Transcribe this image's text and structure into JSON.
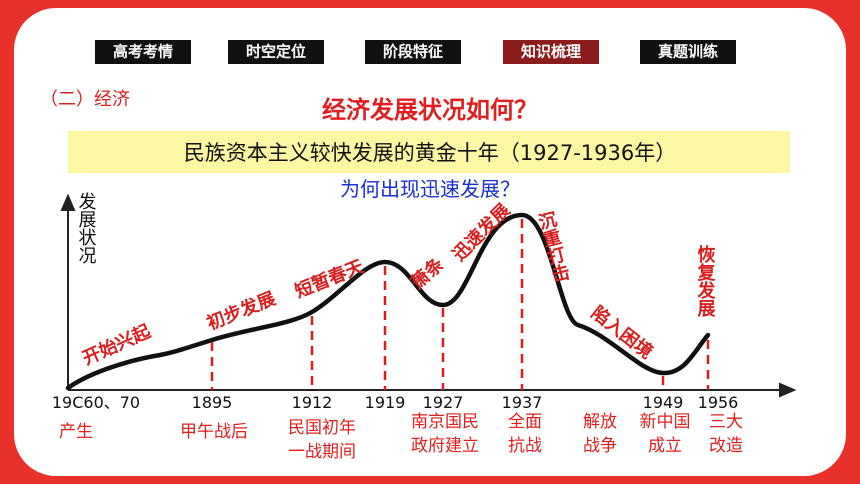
{
  "nav": [
    "高考考情",
    "时空定位",
    "阶段特征",
    "知识梳理",
    "真题训练"
  ],
  "section": "（二）经济",
  "title": "经济发展状况如何？",
  "banner": "民族资本主义较快发展的黄金十年（1927-1936年）",
  "question": "为何出现迅速发展？",
  "y_axis_label": "发展状况",
  "stages": [
    "开始兴起",
    "初步发展",
    "短暂春天",
    "萧条",
    "迅速发展",
    "沉重打击",
    "陷入困境",
    "恢复发展"
  ],
  "x_labels": [
    "19C60、70",
    "1895",
    "1912",
    "1919",
    "1927",
    "1937",
    "1949",
    "1956"
  ],
  "events": [
    [
      "产生"
    ],
    [
      "甲午战后"
    ],
    [
      "民国初年",
      "一战期间"
    ],
    [
      "南京国民",
      "政府建立"
    ],
    [
      "全面",
      "抗战"
    ],
    [
      "解放",
      "战争"
    ],
    [
      "新中国",
      "成立"
    ],
    [
      "三大",
      "改造"
    ]
  ]
}
